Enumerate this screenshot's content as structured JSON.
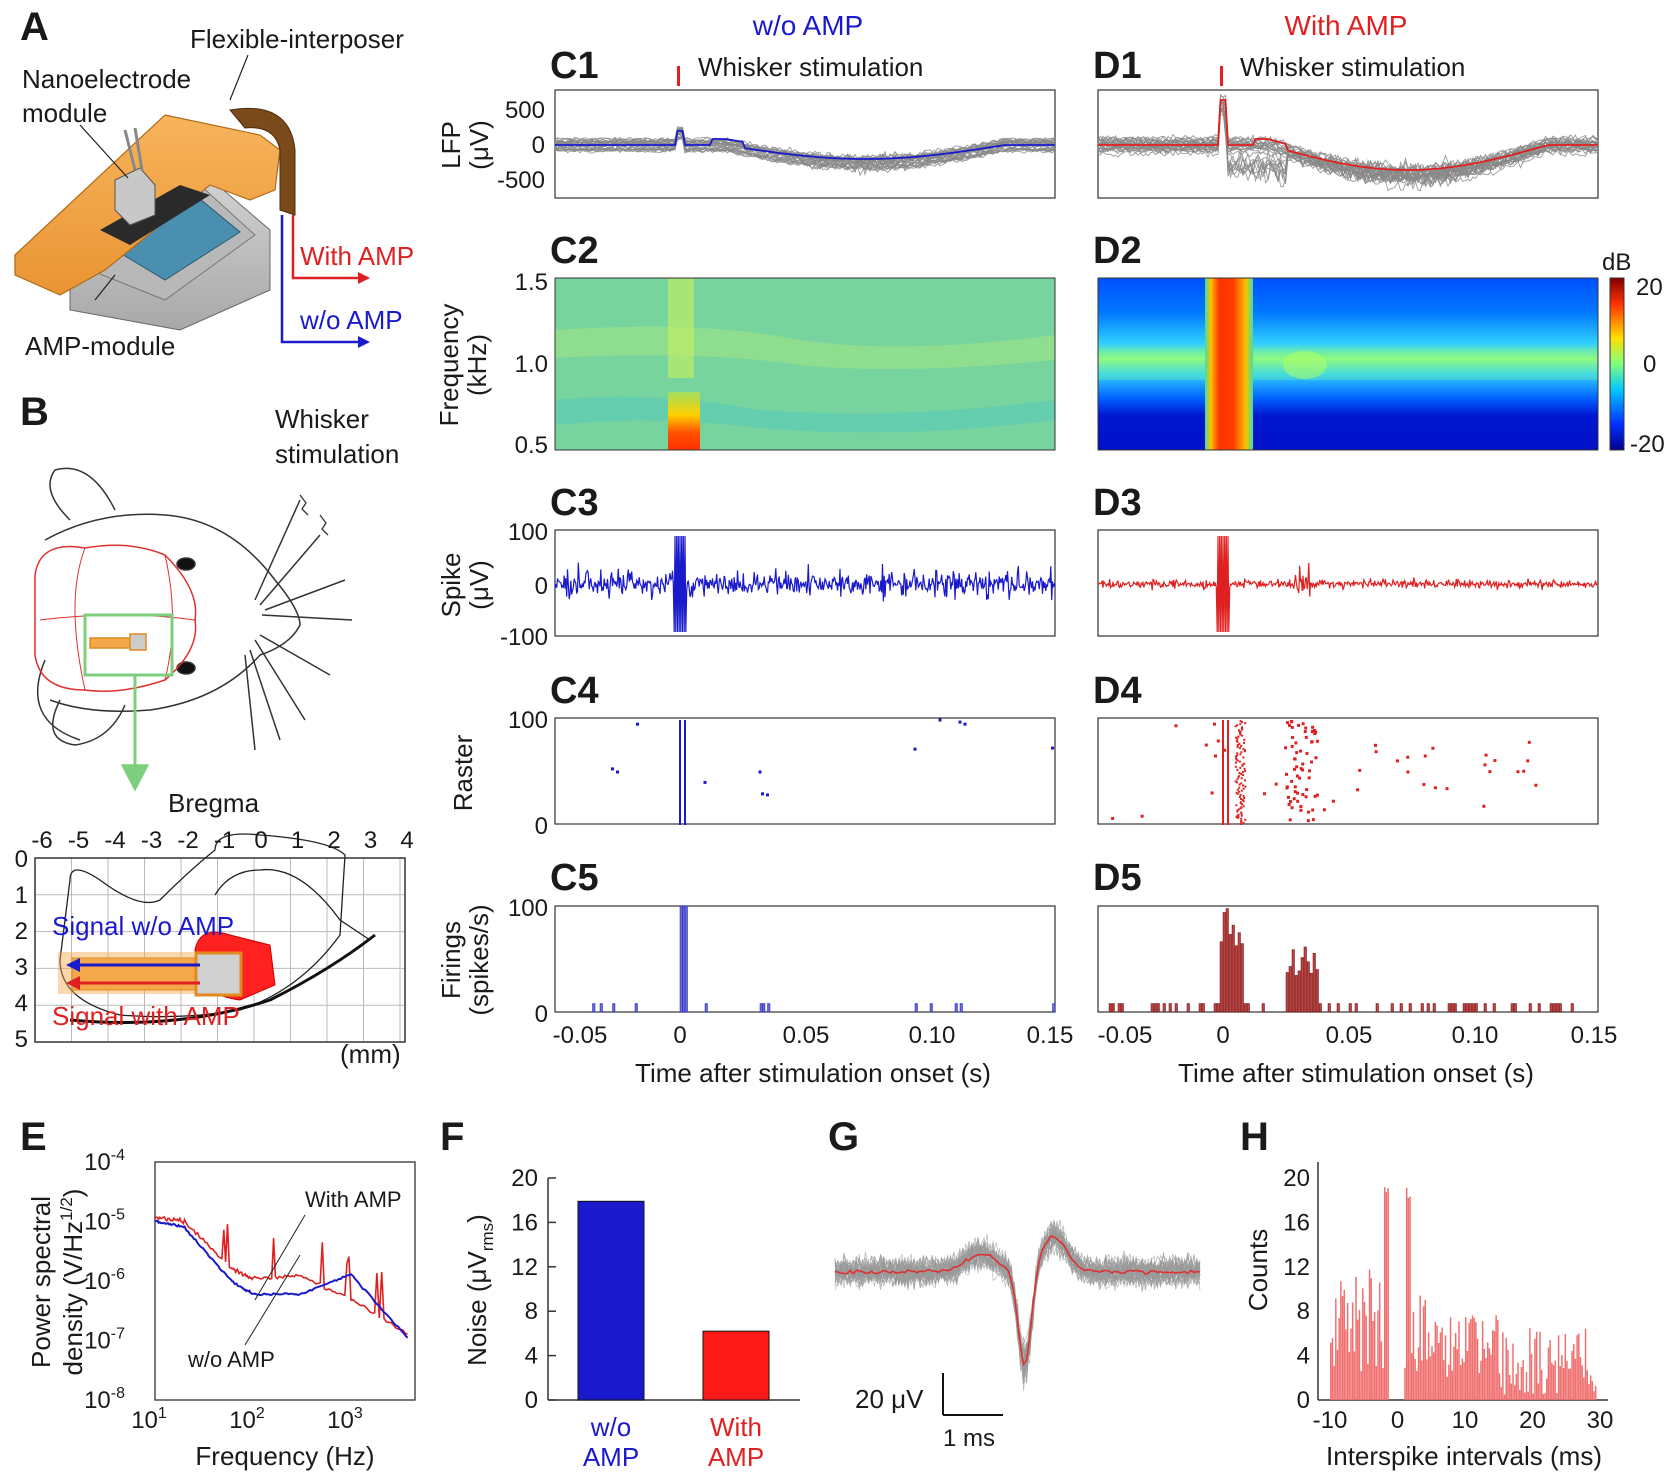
{
  "panel_letters": {
    "A": "A",
    "B": "B",
    "E": "E",
    "F": "F",
    "G": "G",
    "H": "H",
    "C1": "C1",
    "C2": "C2",
    "C3": "C3",
    "C4": "C4",
    "C5": "C5",
    "D1": "D1",
    "D2": "D2",
    "D3": "D3",
    "D4": "D4",
    "D5": "D5"
  },
  "panel_A": {
    "flexible_interposer": "Flexible-interposer",
    "nanoelectrode_line1": "Nanoelectrode",
    "nanoelectrode_line2": "module",
    "amp_module": "AMP-module",
    "with_amp": "With AMP",
    "without_amp": "w/o AMP"
  },
  "panel_B": {
    "whisker_line1": "Whisker",
    "whisker_line2": "stimulation",
    "bregma": "Bregma",
    "x_ticks": [
      "-6",
      "-5",
      "-4",
      "-3",
      "-2",
      "-1",
      "0",
      "1",
      "2",
      "3",
      "4"
    ],
    "y_ticks": [
      "0",
      "1",
      "2",
      "3",
      "4",
      "5"
    ],
    "unit": "(mm)",
    "signal_without_amp": "Signal w/o AMP",
    "signal_with_amp": "Signal with AMP"
  },
  "columns": {
    "C_title": "w/o AMP",
    "D_title": "With AMP",
    "stim_label": "Whisker stimulation"
  },
  "colors": {
    "without_amp": "#1a1acc",
    "with_amp": "#e02020",
    "trace_gray": "#888888",
    "green": "#7ccf7c",
    "orange": "#f4a84a"
  },
  "ylabels": {
    "lfp_line1": "LFP",
    "lfp_line2": "(μV)",
    "freq_line1": "Frequency",
    "freq_line2": "(kHz)",
    "spike_line1": "Spike",
    "spike_line2": "(μV)",
    "raster": "Raster",
    "firings_line1": "Firings",
    "firings_line2": "(spikes/s)"
  },
  "yticks": {
    "lfp": [
      "500",
      "0",
      "-500"
    ],
    "freq": [
      "1.5",
      "1.0",
      "0.5"
    ],
    "spike": [
      "100",
      "0",
      "-100"
    ],
    "raster": [
      "100",
      "0"
    ],
    "firings": [
      "100",
      "0"
    ]
  },
  "colorbar": {
    "unit": "dB",
    "ticks": [
      "20",
      "0",
      "-20"
    ]
  },
  "time_axis": {
    "ticks": [
      "-0.05",
      "0",
      "0.05",
      "0.10",
      "0.15"
    ],
    "label": "Time after stimulation onset (s)"
  },
  "panel_E": {
    "ylabel_line1": "Power spectral",
    "ylabel_line2": "density (V/Hz",
    "ylabel_sup": "1/2",
    "ylabel_close": ")",
    "yticks": [
      "10",
      "10",
      "10",
      "10",
      "10"
    ],
    "yexp": [
      "-4",
      "-5",
      "-6",
      "-7",
      "-8"
    ],
    "xticks": [
      "10",
      "10",
      "10"
    ],
    "xexp": [
      "1",
      "2",
      "3"
    ],
    "xlabel": "Frequency (Hz)",
    "with_amp": "With AMP",
    "without_amp": "w/o AMP"
  },
  "panel_F": {
    "ylabel_main": "Noise (μV",
    "ylabel_sub": "rms",
    "ylabel_close": ")",
    "yticks": [
      "20",
      "16",
      "12",
      "8",
      "4",
      "0"
    ],
    "bar1_line1": "w/o",
    "bar1_line2": "AMP",
    "bar2_line1": "With",
    "bar2_line2": "AMP"
  },
  "panel_G": {
    "scale_v": "20 μV",
    "scale_t": "1 ms"
  },
  "panel_H": {
    "ylabel": "Counts",
    "yticks": [
      "20",
      "16",
      "12",
      "8",
      "4",
      "0"
    ],
    "xticks": [
      "-10",
      "0",
      "10",
      "20",
      "30"
    ],
    "xlabel": "Interspike intervals (ms)"
  },
  "chart_data": [
    {
      "type": "bar",
      "categories": [
        "w/o AMP",
        "With AMP"
      ],
      "values": [
        17.9,
        6.2
      ],
      "ylabel": "Noise (μVrms)",
      "ylim": [
        0,
        20
      ]
    },
    {
      "type": "line",
      "x": [
        10,
        20,
        60,
        100,
        300,
        1000,
        4000
      ],
      "series": [
        {
          "name": "With AMP",
          "values": [
            1.2e-05,
            1e-05,
            1.6e-06,
            1.1e-06,
            1.2e-06,
            5e-07,
            1.2e-07
          ]
        },
        {
          "name": "w/o AMP",
          "values": [
            1e-05,
            8e-06,
            1e-06,
            6e-07,
            6e-07,
            1.3e-06,
            1e-07
          ]
        }
      ],
      "xlabel": "Frequency (Hz)",
      "xlim": [
        10,
        4500
      ],
      "ylim": [
        1e-08,
        0.0001
      ],
      "log_x": true,
      "log_y": true
    },
    {
      "type": "bar",
      "categories": [
        "w/o AMP",
        "With AMP"
      ],
      "bins_start": -0.05,
      "bin_width": 0.001,
      "without_amp_peaks": [
        {
          "t": 0.0,
          "value": 100
        },
        {
          "t": 0.001,
          "value": 100
        }
      ],
      "with_amp_peaks": [
        {
          "t": 0.0,
          "value": 100
        },
        {
          "t": 0.002,
          "value": 100
        },
        {
          "t": 0.005,
          "value": 90
        },
        {
          "t": 0.03,
          "value": 60
        },
        {
          "t": 0.033,
          "value": 62
        }
      ],
      "xlabel": "Time after stimulation onset (s)",
      "ylabel": "Firings (spikes/s)",
      "ylim": [
        0,
        100
      ]
    },
    {
      "type": "bar",
      "xlabel": "Interspike intervals (ms)",
      "ylabel": "Counts",
      "xlim": [
        -10,
        30
      ],
      "ylim": [
        0,
        20
      ]
    }
  ]
}
